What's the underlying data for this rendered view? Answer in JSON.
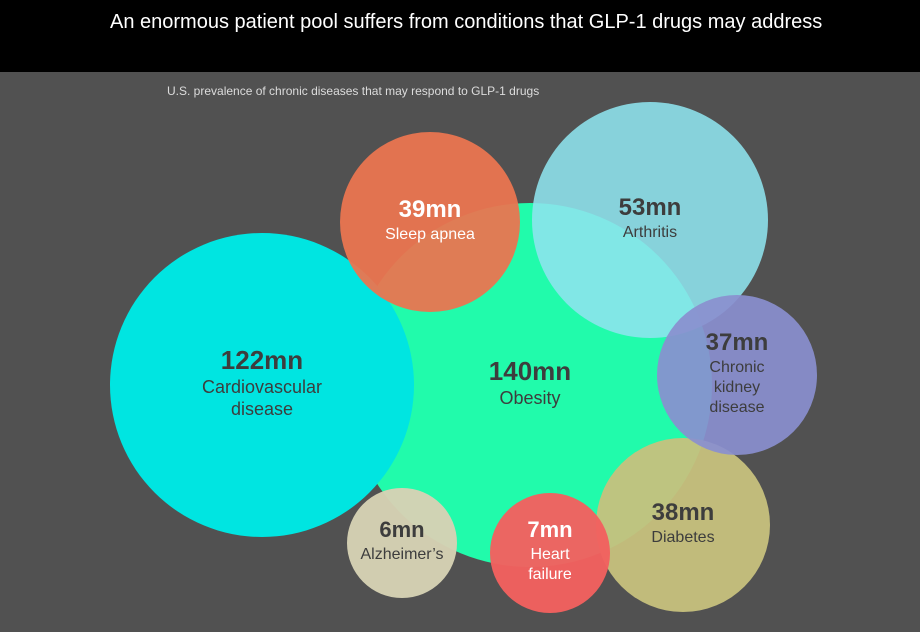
{
  "header": {
    "title": "An enormous patient pool suffers from conditions that GLP-1 drugs may address"
  },
  "colors": {
    "background": "#515151",
    "obesity": "#21fbab",
    "cardiovascular": "#00e5e1",
    "sleep_apnea": "#ea7550",
    "arthritis": "#8ee4ee",
    "kidney": "#8a8fcf",
    "diabetes": "#c7c17d",
    "heart_failure": "#f2615f",
    "alzheimers": "#d6d2b4"
  },
  "chart_data": {
    "type": "bubble",
    "title": "U.S. prevalence of chronic diseases that may respond to GLP-1 drugs",
    "unit": "mn",
    "items": [
      {
        "value_label": "140mn",
        "value": 140,
        "name_lines": [
          "Obesity"
        ],
        "color": "#21fbab",
        "text_color": "#3d3d3d"
      },
      {
        "value_label": "122mn",
        "value": 122,
        "name_lines": [
          "Cardiovascular",
          "disease"
        ],
        "color": "#00e5e1",
        "text_color": "#3d3d3d"
      },
      {
        "value_label": "53mn",
        "value": 53,
        "name_lines": [
          "Arthritis"
        ],
        "color": "#8ee4ee",
        "text_color": "#3d3d3d"
      },
      {
        "value_label": "39mn",
        "value": 39,
        "name_lines": [
          "Sleep apnea"
        ],
        "color": "#ea7550",
        "text_color": "#ffffff"
      },
      {
        "value_label": "38mn",
        "value": 38,
        "name_lines": [
          "Diabetes"
        ],
        "color": "#c7c17d",
        "text_color": "#3d3d3d"
      },
      {
        "value_label": "37mn",
        "value": 37,
        "name_lines": [
          "Chronic",
          "kidney",
          "disease"
        ],
        "color": "#8a8fcf",
        "text_color": "#3d3d3d"
      },
      {
        "value_label": "7mn",
        "value": 7,
        "name_lines": [
          "Heart",
          "failure"
        ],
        "color": "#f2615f",
        "text_color": "#ffffff"
      },
      {
        "value_label": "6mn",
        "value": 6,
        "name_lines": [
          "Alzheimer’s"
        ],
        "color": "#d6d2b4",
        "text_color": "#3d3d3d"
      }
    ]
  }
}
